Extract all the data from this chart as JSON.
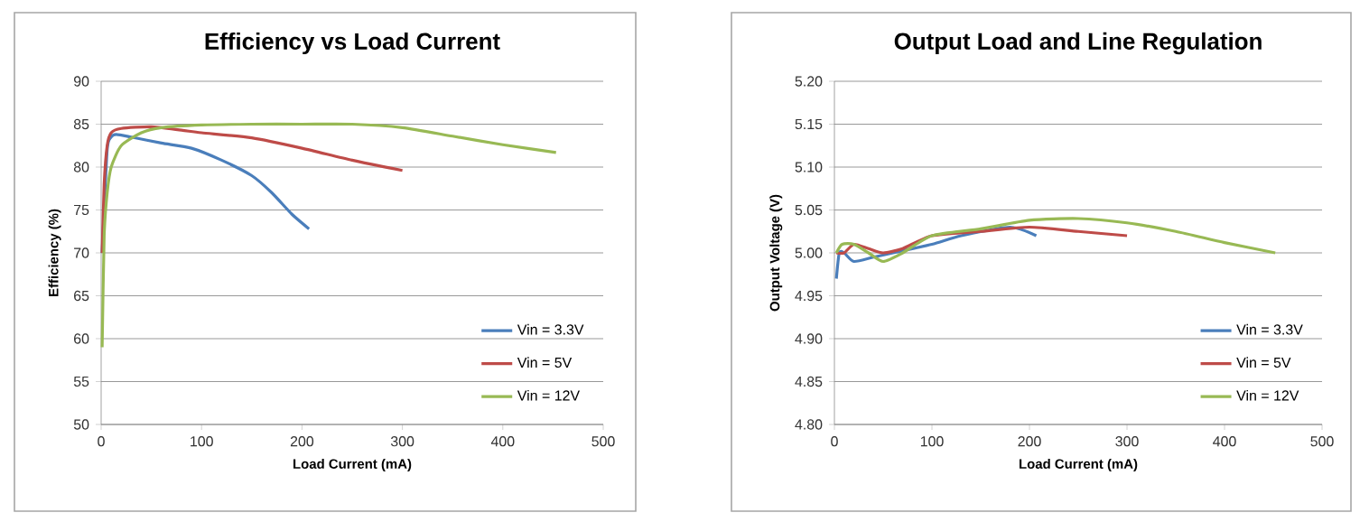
{
  "chart_data": [
    {
      "type": "line",
      "title": "Efficiency vs Load Current",
      "xlabel": "Load Current (mA)",
      "ylabel": "Efficiency (%)",
      "xlim": [
        0,
        500
      ],
      "xticks": [
        0,
        100,
        200,
        300,
        400,
        500
      ],
      "ylim": [
        50,
        90
      ],
      "yticks": [
        50,
        55,
        60,
        65,
        70,
        75,
        80,
        85,
        90
      ],
      "grid": "y",
      "legend": "bottom right",
      "marker": "none",
      "line_style": "solid",
      "series": [
        {
          "name": "Vin = 3.3V",
          "color": "#4a7ebb",
          "x": [
            1,
            6,
            10,
            15,
            30,
            60,
            90,
            120,
            150,
            170,
            190,
            207
          ],
          "values": [
            70,
            82,
            83.5,
            83.8,
            83.5,
            82.8,
            82.2,
            80.8,
            79,
            77,
            74.5,
            72.8
          ]
        },
        {
          "name": "Vin = 5V",
          "color": "#be4b48",
          "x": [
            1,
            3,
            6,
            10,
            20,
            50,
            80,
            100,
            150,
            200,
            250,
            300
          ],
          "values": [
            70,
            78,
            82.5,
            84,
            84.5,
            84.7,
            84.3,
            84,
            83.4,
            82.2,
            80.8,
            79.6
          ]
        },
        {
          "name": "Vin = 12V",
          "color": "#98b954",
          "x": [
            1,
            3,
            6,
            10,
            20,
            40,
            60,
            100,
            150,
            200,
            250,
            300,
            350,
            400,
            453
          ],
          "values": [
            59,
            72,
            77,
            80,
            82.5,
            84,
            84.6,
            84.9,
            85,
            85,
            85,
            84.6,
            83.6,
            82.6,
            81.7
          ]
        }
      ]
    },
    {
      "type": "line",
      "title": "Output Load and Line Regulation",
      "xlabel": "Load Current (mA)",
      "ylabel": "Output Voltage (V)",
      "xlim": [
        0,
        500
      ],
      "xticks": [
        0,
        100,
        200,
        300,
        400,
        500
      ],
      "ylim": [
        4.8,
        5.2
      ],
      "yticks": [
        {
          "value": 4.8,
          "label": "4.80"
        },
        4.85,
        {
          "value": 4.9,
          "label": "4.90"
        },
        4.95,
        {
          "value": 5.0,
          "label": "5.00"
        },
        5.05,
        {
          "value": 5.1,
          "label": "5.10"
        },
        5.15,
        {
          "value": 5.2,
          "label": "5.20"
        }
      ],
      "grid": "y",
      "legend": "bottom right",
      "marker": "none",
      "line_style": "solid",
      "series": [
        {
          "name": "Vin = 3.3V",
          "color": "#4a7ebb",
          "x": [
            2,
            5,
            10,
            20,
            40,
            60,
            100,
            130,
            180,
            207
          ],
          "values": [
            4.97,
            5.0,
            5.0,
            4.99,
            4.995,
            5.0,
            5.01,
            5.02,
            5.03,
            5.02
          ]
        },
        {
          "name": "Vin = 5V",
          "color": "#be4b48",
          "x": [
            2,
            10,
            20,
            35,
            50,
            70,
            100,
            150,
            200,
            250,
            300
          ],
          "values": [
            5.0,
            5.0,
            5.01,
            5.005,
            5.0,
            5.005,
            5.02,
            5.025,
            5.03,
            5.025,
            5.02
          ]
        },
        {
          "name": "Vin = 12V",
          "color": "#98b954",
          "x": [
            2,
            8,
            20,
            35,
            50,
            70,
            100,
            150,
            200,
            250,
            300,
            350,
            400,
            452
          ],
          "values": [
            5.0,
            5.01,
            5.01,
            5.0,
            4.99,
            5.0,
            5.02,
            5.028,
            5.038,
            5.04,
            5.035,
            5.025,
            5.012,
            5.0
          ]
        }
      ]
    }
  ]
}
